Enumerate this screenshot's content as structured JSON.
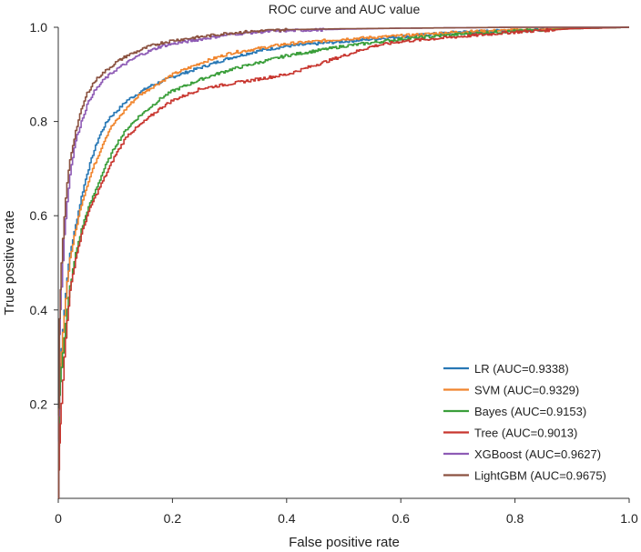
{
  "chart_data": {
    "type": "line",
    "title": "ROC curve and AUC value",
    "xlabel": "False positive rate",
    "ylabel": "True positive rate",
    "xlim": [
      0,
      1
    ],
    "ylim": [
      0,
      1
    ],
    "x_ticks": [
      0,
      0.2,
      0.4,
      0.6,
      0.8,
      1.0
    ],
    "x_tick_labels": [
      "0",
      "0.2",
      "0.4",
      "0.6",
      "0.8",
      "1.0"
    ],
    "y_ticks": [
      0.2,
      0.4,
      0.6,
      0.8,
      1.0
    ],
    "y_tick_labels": [
      "0.2",
      "0.4",
      "0.6",
      "0.8",
      "1.0"
    ],
    "legend_position": "bottom-right",
    "grid": false,
    "series": [
      {
        "name": "LR",
        "auc": 0.9338,
        "label": "LR (AUC=0.9338)",
        "color": "#2878b5",
        "x": [
          0,
          0.002,
          0.005,
          0.01,
          0.015,
          0.02,
          0.03,
          0.04,
          0.05,
          0.06,
          0.07,
          0.08,
          0.09,
          0.1,
          0.12,
          0.14,
          0.16,
          0.18,
          0.2,
          0.25,
          0.3,
          0.35,
          0.4,
          0.5,
          0.6,
          0.7,
          0.8,
          0.9,
          1.0
        ],
        "y": [
          0,
          0.25,
          0.32,
          0.4,
          0.47,
          0.52,
          0.58,
          0.64,
          0.69,
          0.73,
          0.765,
          0.79,
          0.81,
          0.82,
          0.845,
          0.86,
          0.875,
          0.885,
          0.895,
          0.915,
          0.935,
          0.95,
          0.96,
          0.97,
          0.98,
          0.99,
          0.993,
          0.997,
          1.0
        ]
      },
      {
        "name": "SVM",
        "auc": 0.9329,
        "label": "SVM (AUC=0.9329)",
        "color": "#f0852d",
        "x": [
          0,
          0.002,
          0.005,
          0.01,
          0.015,
          0.02,
          0.03,
          0.04,
          0.05,
          0.06,
          0.07,
          0.08,
          0.09,
          0.1,
          0.12,
          0.14,
          0.16,
          0.18,
          0.2,
          0.25,
          0.3,
          0.35,
          0.4,
          0.5,
          0.6,
          0.7,
          0.8,
          0.9,
          1.0
        ],
        "y": [
          0,
          0.24,
          0.31,
          0.39,
          0.46,
          0.51,
          0.57,
          0.625,
          0.665,
          0.7,
          0.73,
          0.76,
          0.785,
          0.8,
          0.83,
          0.855,
          0.87,
          0.885,
          0.9,
          0.925,
          0.945,
          0.955,
          0.965,
          0.975,
          0.982,
          0.99,
          0.994,
          0.998,
          1.0
        ]
      },
      {
        "name": "Bayes",
        "auc": 0.9153,
        "label": "Bayes (AUC=0.9153)",
        "color": "#3a9e3a",
        "x": [
          0,
          0.002,
          0.005,
          0.01,
          0.015,
          0.02,
          0.03,
          0.04,
          0.05,
          0.06,
          0.07,
          0.08,
          0.09,
          0.1,
          0.12,
          0.14,
          0.16,
          0.18,
          0.2,
          0.25,
          0.3,
          0.35,
          0.4,
          0.5,
          0.6,
          0.7,
          0.8,
          0.9,
          1.0
        ],
        "y": [
          0,
          0.22,
          0.28,
          0.34,
          0.4,
          0.45,
          0.52,
          0.57,
          0.61,
          0.64,
          0.67,
          0.7,
          0.725,
          0.75,
          0.785,
          0.81,
          0.83,
          0.85,
          0.865,
          0.89,
          0.91,
          0.925,
          0.94,
          0.96,
          0.975,
          0.985,
          0.992,
          0.997,
          1.0
        ]
      },
      {
        "name": "Tree",
        "auc": 0.9013,
        "label": "Tree (AUC=0.9013)",
        "color": "#c8362f",
        "x": [
          0,
          0.002,
          0.005,
          0.01,
          0.015,
          0.02,
          0.03,
          0.04,
          0.05,
          0.06,
          0.07,
          0.08,
          0.09,
          0.1,
          0.12,
          0.14,
          0.16,
          0.18,
          0.2,
          0.22,
          0.25,
          0.3,
          0.35,
          0.4,
          0.45,
          0.5,
          0.55,
          0.6,
          0.7,
          0.8,
          0.9,
          1.0
        ],
        "y": [
          0,
          0.12,
          0.2,
          0.3,
          0.38,
          0.44,
          0.51,
          0.56,
          0.6,
          0.63,
          0.655,
          0.68,
          0.705,
          0.73,
          0.77,
          0.79,
          0.81,
          0.83,
          0.845,
          0.855,
          0.87,
          0.88,
          0.89,
          0.9,
          0.92,
          0.94,
          0.96,
          0.97,
          0.98,
          0.99,
          0.997,
          1.0
        ]
      },
      {
        "name": "XGBoost",
        "auc": 0.9627,
        "label": "XGBoost (AUC=0.9627)",
        "color": "#8e5bb5",
        "x": [
          0,
          0.002,
          0.005,
          0.01,
          0.015,
          0.02,
          0.03,
          0.04,
          0.05,
          0.06,
          0.07,
          0.08,
          0.09,
          0.1,
          0.12,
          0.14,
          0.16,
          0.18,
          0.2,
          0.25,
          0.3,
          0.35,
          0.4,
          0.5,
          0.6,
          0.7,
          0.8,
          0.9,
          1.0
        ],
        "y": [
          0,
          0.35,
          0.45,
          0.56,
          0.63,
          0.69,
          0.76,
          0.8,
          0.835,
          0.86,
          0.875,
          0.89,
          0.9,
          0.91,
          0.925,
          0.94,
          0.95,
          0.96,
          0.965,
          0.975,
          0.985,
          0.99,
          0.993,
          0.996,
          0.998,
          0.999,
          1.0,
          1.0,
          1.0
        ]
      },
      {
        "name": "LightGBM",
        "auc": 0.9675,
        "label": "LightGBM (AUC=0.9675)",
        "color": "#8b5240",
        "x": [
          0,
          0.002,
          0.005,
          0.01,
          0.015,
          0.02,
          0.03,
          0.04,
          0.05,
          0.06,
          0.07,
          0.08,
          0.09,
          0.1,
          0.12,
          0.14,
          0.16,
          0.18,
          0.2,
          0.25,
          0.3,
          0.35,
          0.4,
          0.5,
          0.6,
          0.7,
          0.8,
          0.9,
          1.0
        ],
        "y": [
          0,
          0.38,
          0.5,
          0.6,
          0.67,
          0.72,
          0.78,
          0.825,
          0.86,
          0.88,
          0.895,
          0.905,
          0.915,
          0.925,
          0.94,
          0.95,
          0.96,
          0.967,
          0.972,
          0.98,
          0.988,
          0.992,
          0.995,
          0.997,
          0.998,
          0.999,
          1.0,
          1.0,
          1.0
        ]
      }
    ]
  }
}
